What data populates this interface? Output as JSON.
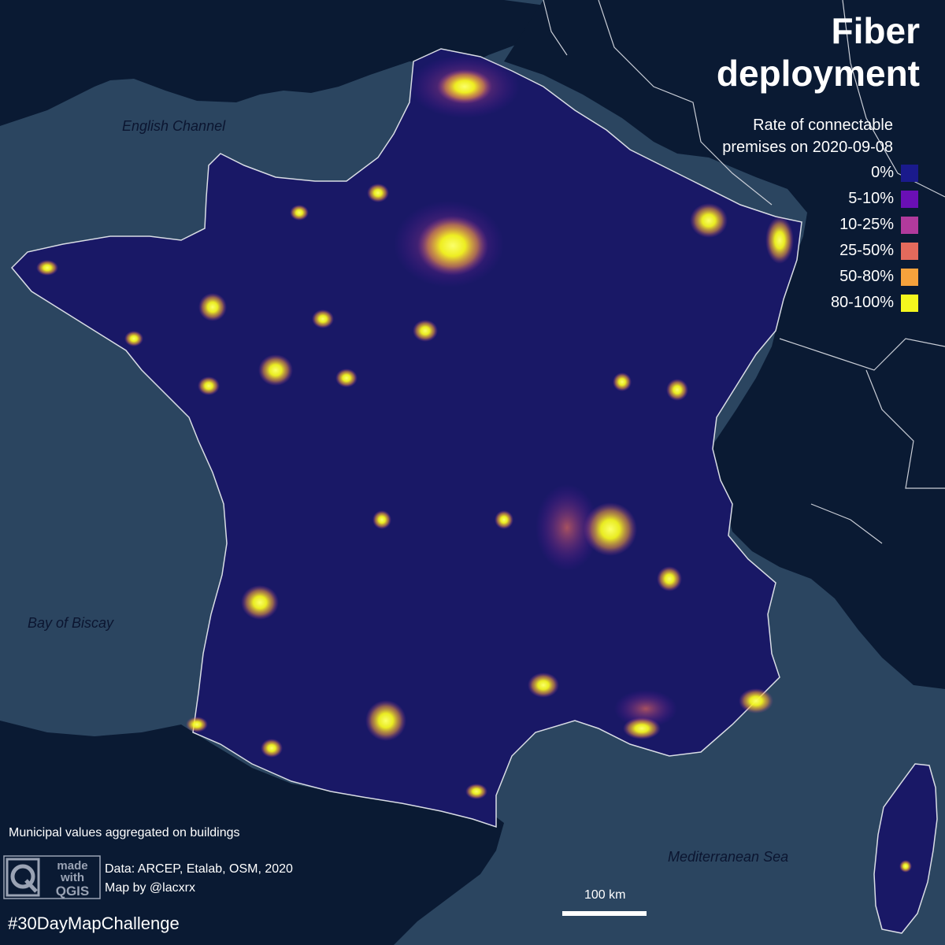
{
  "map": {
    "title_line1": "Fiber",
    "title_line2": "deployment",
    "legend": {
      "title_line1": "Rate of connectable",
      "title_line2": "premises on 2020-09-08",
      "items": [
        {
          "label": "0%",
          "color": "#1a1a8c"
        },
        {
          "label": "5-10%",
          "color": "#6a0fb5"
        },
        {
          "label": "10-25%",
          "color": "#b13a9c"
        },
        {
          "label": "25-50%",
          "color": "#e46a5c"
        },
        {
          "label": "50-80%",
          "color": "#f6a23c"
        },
        {
          "label": "80-100%",
          "color": "#f4f71e"
        }
      ]
    },
    "sea_labels": {
      "english_channel": "English  Channel",
      "bay_of_biscay": "Bay of Biscay",
      "mediterranean": "Mediterranean Sea"
    },
    "note": "Municipal values aggregated on buildings",
    "logo_text": {
      "made": "made",
      "with": "with",
      "qgis": "QGIS"
    },
    "credits_line1": "Data: ARCEP, Etalab, OSM, 2020",
    "credits_line2": "Map by @lacxrx",
    "hashtag": "#30DayMapChallenge",
    "scale_label": "100 km",
    "colors": {
      "sea": "#2b4560",
      "land_other": "#0a1a33",
      "france": "#191866",
      "border": "#d9dde5",
      "hotspot": "#f4f71e"
    }
  }
}
